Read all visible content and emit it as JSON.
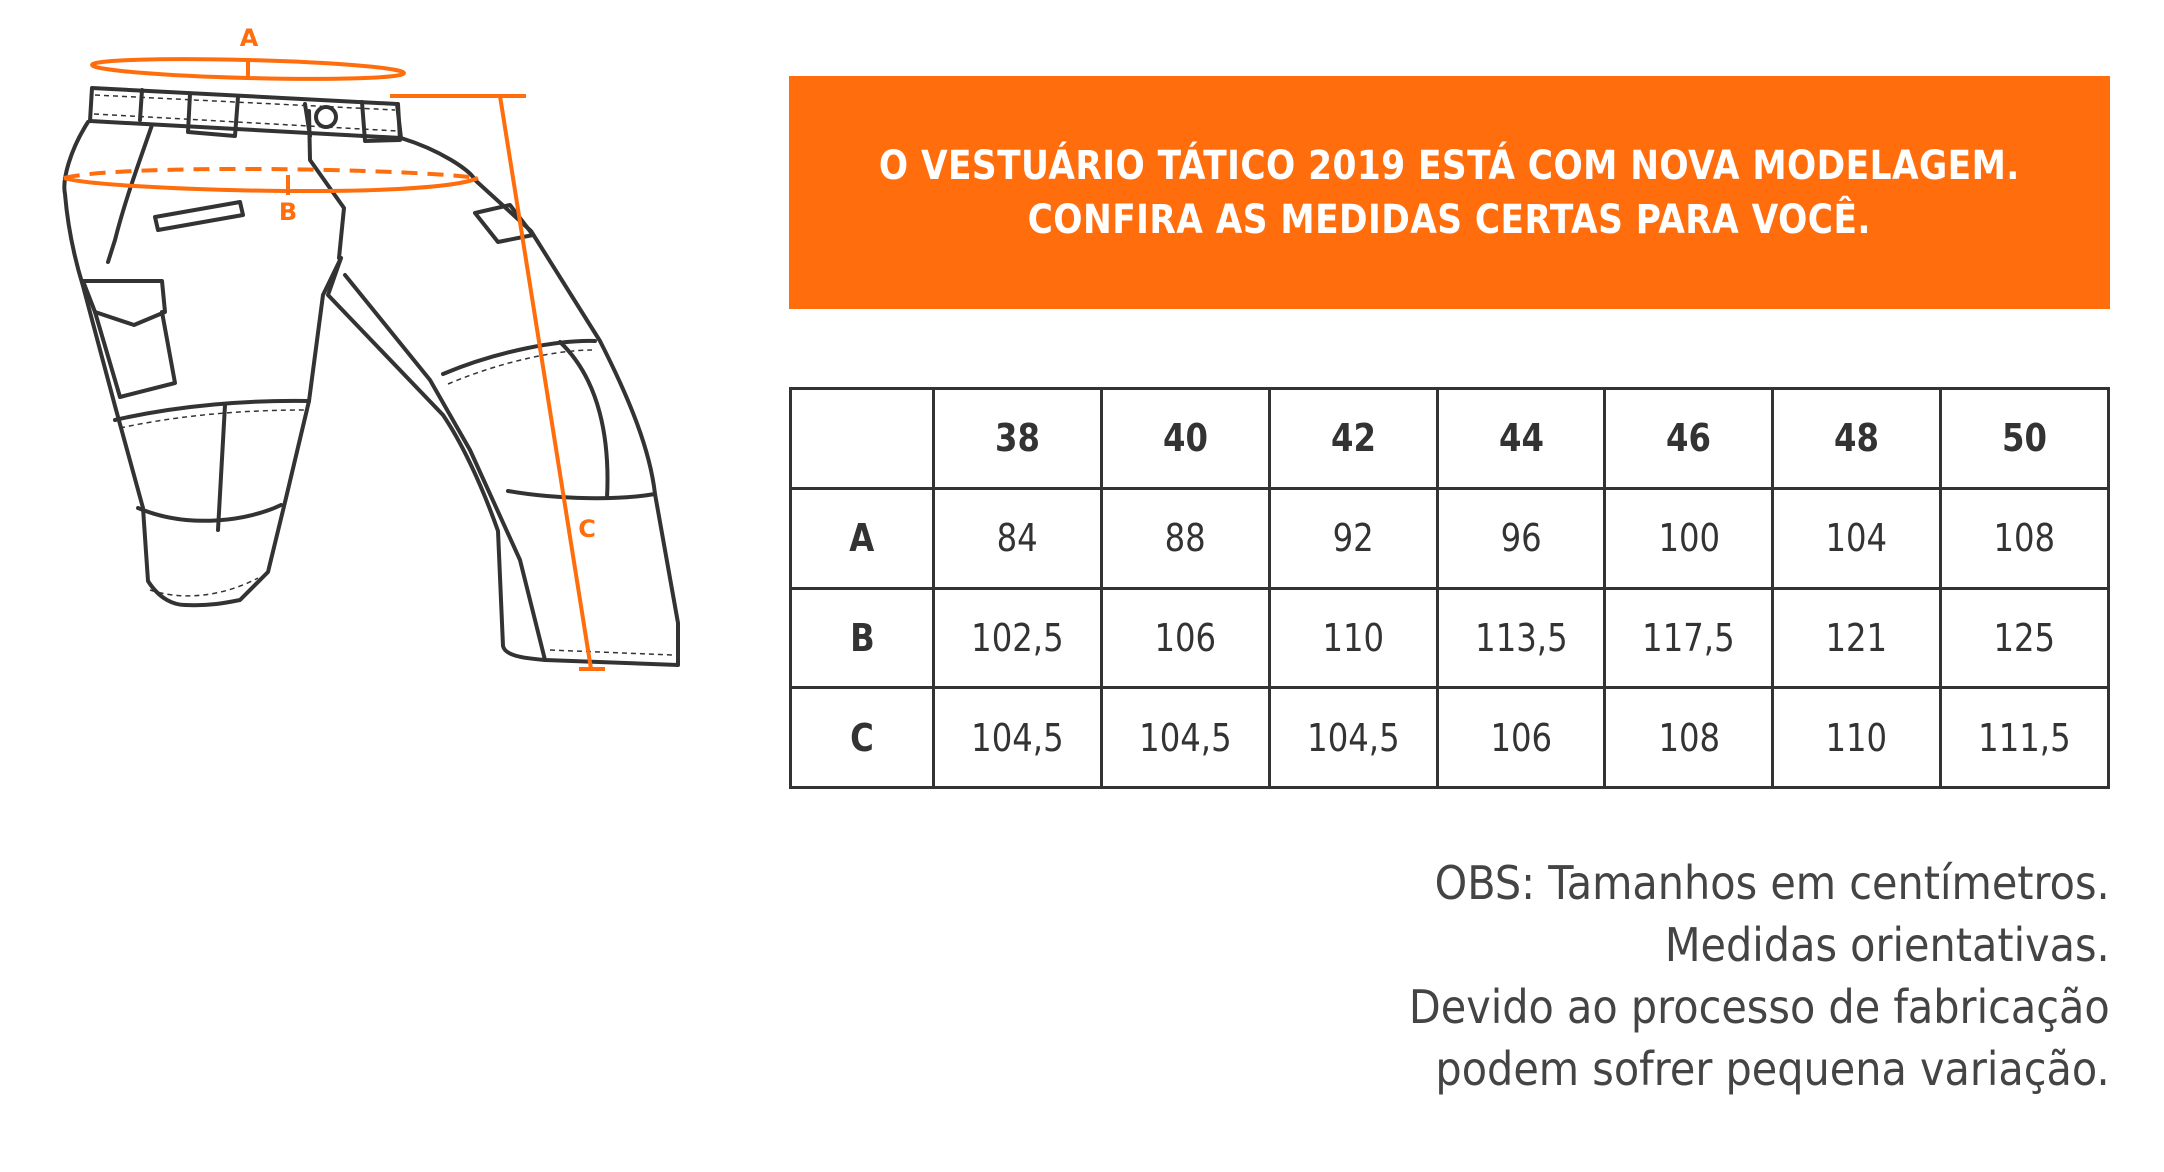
{
  "diagram": {
    "labels": {
      "a": "A",
      "b": "B",
      "c": "C"
    },
    "accent_color": "#ff6d0c",
    "line_color": "#333333"
  },
  "banner": {
    "line1": "O VESTUÁRIO TÁTICO 2019 ESTÁ COM NOVA MODELAGEM.",
    "line2": "CONFIRA AS MEDIDAS CERTAS PARA VOCÊ.",
    "background": "#ff6d0c"
  },
  "size_table": {
    "columns": [
      "",
      "38",
      "40",
      "42",
      "44",
      "46",
      "48",
      "50"
    ],
    "rows": [
      {
        "label": "A",
        "values": [
          "84",
          "88",
          "92",
          "96",
          "100",
          "104",
          "108"
        ]
      },
      {
        "label": "B",
        "values": [
          "102,5",
          "106",
          "110",
          "113,5",
          "117,5",
          "121",
          "125"
        ]
      },
      {
        "label": "C",
        "values": [
          "104,5",
          "104,5",
          "104,5",
          "106",
          "108",
          "110",
          "111,5"
        ]
      }
    ]
  },
  "notes": [
    "OBS: Tamanhos em centímetros.",
    "Medidas orientativas.",
    "Devido ao processo de fabricação",
    "podem sofrer pequena variação."
  ]
}
